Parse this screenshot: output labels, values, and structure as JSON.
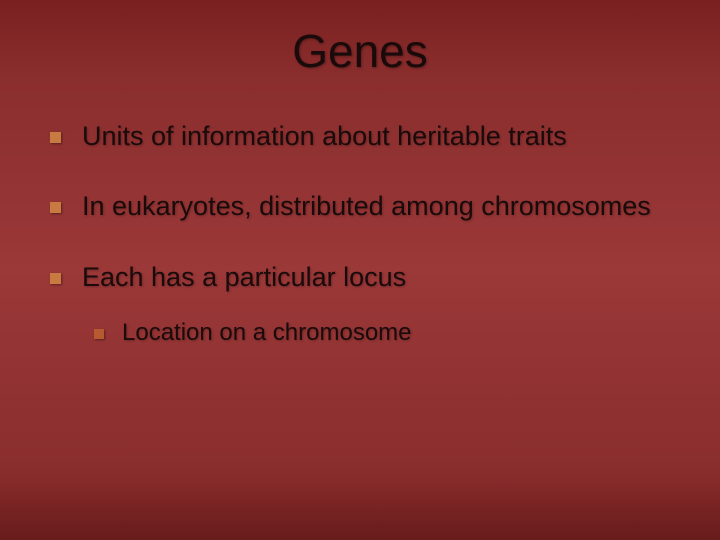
{
  "slide": {
    "title": "Genes",
    "title_fontsize": 46,
    "title_color": "#1a0a0a",
    "background_gradient": [
      "#7a2020",
      "#8b2e2e",
      "#9b3838",
      "#8b2e2e",
      "#7a2020"
    ],
    "bullet_marker_color": "#c97a40",
    "sub_bullet_marker_color": "#b85a30",
    "body_text_color": "#1a0a0a",
    "body_fontsize": 27,
    "sub_fontsize": 24,
    "bullets": [
      {
        "text": "Units of information about heritable traits"
      },
      {
        "text": "In eukaryotes, distributed among chromosomes"
      },
      {
        "text": "Each has a particular locus",
        "children": [
          {
            "text": "Location on a chromosome"
          }
        ]
      }
    ]
  }
}
